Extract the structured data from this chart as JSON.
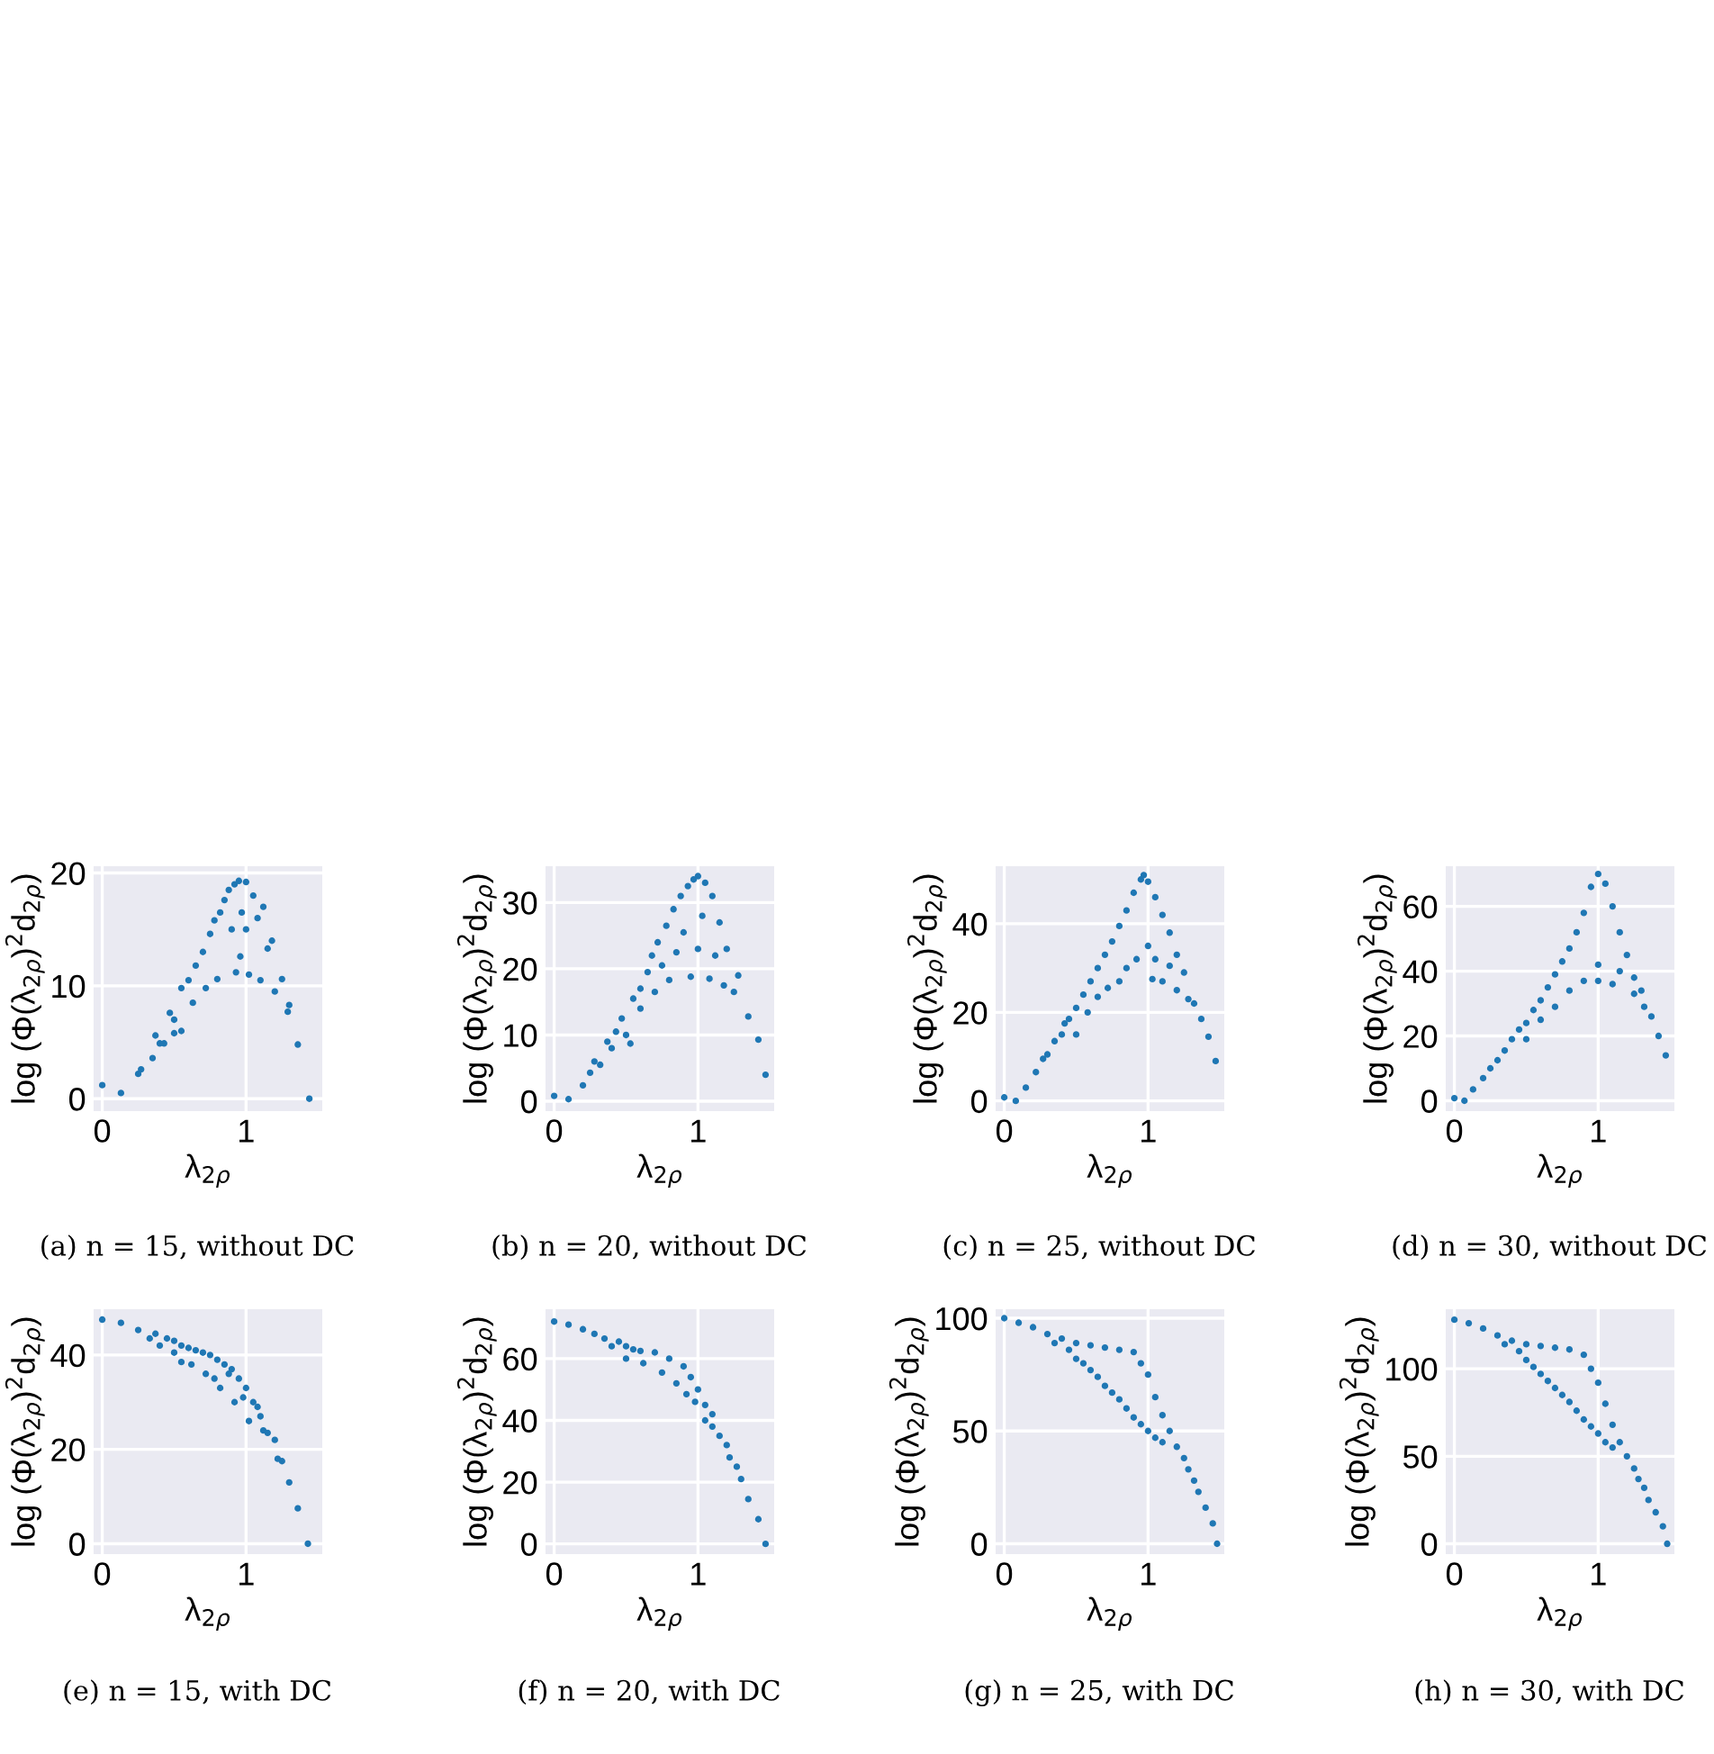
{
  "chart_data": [
    {
      "type": "scatter",
      "xlabel": "λ$_{2ρ}$",
      "ylabel": "log (Φ(λ$_{2ρ}$)$^{2}$d$_{2ρ}$)",
      "color": "#1f77b4",
      "marker": "circle",
      "grid": true,
      "xlim": [
        -0.06,
        1.53
      ],
      "ylim": [
        -1.1,
        20.6
      ],
      "xticks": [
        0,
        1
      ],
      "yticks": [
        0,
        10,
        20
      ],
      "annotations": [
        "(a) n = 15, without DC"
      ],
      "x": [
        0,
        0.13,
        0.25,
        0.27,
        0.35,
        0.37,
        0.4,
        0.43,
        0.47,
        0.5,
        0.5,
        0.55,
        0.55,
        0.6,
        0.63,
        0.65,
        0.7,
        0.72,
        0.75,
        0.78,
        0.8,
        0.82,
        0.85,
        0.88,
        0.9,
        0.92,
        0.93,
        0.95,
        0.96,
        0.97,
        1.0,
        1.0,
        1.02,
        1.05,
        1.08,
        1.1,
        1.12,
        1.15,
        1.18,
        1.2,
        1.25,
        1.3,
        1.29,
        1.36,
        1.44
      ],
      "values": [
        1.2,
        0.5,
        2.2,
        2.6,
        3.6,
        5.6,
        4.9,
        4.9,
        7.6,
        7.0,
        5.8,
        6.0,
        9.8,
        10.5,
        8.5,
        11.8,
        13.0,
        9.8,
        14.6,
        15.8,
        10.6,
        16.5,
        17.6,
        18.5,
        15.0,
        19.0,
        11.2,
        19.3,
        12.6,
        16.5,
        19.2,
        15.0,
        11.0,
        18.0,
        16.0,
        10.5,
        17.0,
        13.3,
        14.0,
        9.5,
        10.6,
        8.3,
        7.7,
        4.8,
        0.0
      ]
    },
    {
      "type": "scatter",
      "xlabel": "λ$_{2ρ}$",
      "ylabel": "log (Φ(λ$_{2ρ}$)$^{2}$d$_{2ρ}$)",
      "color": "#1f77b4",
      "marker": "circle",
      "grid": true,
      "xlim": [
        -0.06,
        1.53
      ],
      "ylim": [
        -1.5,
        35.5
      ],
      "xticks": [
        0,
        1
      ],
      "yticks": [
        0,
        10,
        20,
        30
      ],
      "annotations": [
        "(b) n = 20, without DC"
      ],
      "x": [
        0,
        0.1,
        0.2,
        0.25,
        0.28,
        0.32,
        0.37,
        0.4,
        0.43,
        0.47,
        0.5,
        0.53,
        0.55,
        0.6,
        0.6,
        0.65,
        0.68,
        0.7,
        0.72,
        0.75,
        0.78,
        0.8,
        0.83,
        0.85,
        0.88,
        0.9,
        0.93,
        0.95,
        0.97,
        1.0,
        1.0,
        1.03,
        1.05,
        1.08,
        1.1,
        1.12,
        1.15,
        1.18,
        1.2,
        1.25,
        1.28,
        1.35,
        1.42,
        1.47
      ],
      "values": [
        0.8,
        0.3,
        2.4,
        4.3,
        6.0,
        5.5,
        9.0,
        8.0,
        10.5,
        12.5,
        10.0,
        8.7,
        15.5,
        17.0,
        14.0,
        19.5,
        22.0,
        16.5,
        24.0,
        20.5,
        26.5,
        18.3,
        29.0,
        22.5,
        31.0,
        25.5,
        32.5,
        18.8,
        33.5,
        34.0,
        23.0,
        28.0,
        33.0,
        18.5,
        31.0,
        22.0,
        27.0,
        17.5,
        23.0,
        16.5,
        19.0,
        12.8,
        9.3,
        4.0
      ]
    },
    {
      "type": "scatter",
      "xlabel": "λ$_{2ρ}$",
      "ylabel": "log (Φ(λ$_{2ρ}$)$^{2}$d$_{2ρ}$)",
      "color": "#1f77b4",
      "marker": "circle",
      "grid": true,
      "xlim": [
        -0.06,
        1.53
      ],
      "ylim": [
        -2.3,
        53
      ],
      "xticks": [
        0,
        1
      ],
      "yticks": [
        0,
        20,
        40
      ],
      "annotations": [
        "(c) n = 25, without DC"
      ],
      "x": [
        0,
        0.08,
        0.15,
        0.22,
        0.27,
        0.3,
        0.35,
        0.4,
        0.42,
        0.45,
        0.5,
        0.5,
        0.55,
        0.58,
        0.6,
        0.65,
        0.65,
        0.7,
        0.72,
        0.75,
        0.8,
        0.8,
        0.85,
        0.85,
        0.9,
        0.92,
        0.95,
        0.97,
        1.0,
        1.0,
        1.03,
        1.05,
        1.05,
        1.1,
        1.1,
        1.15,
        1.15,
        1.2,
        1.2,
        1.25,
        1.28,
        1.32,
        1.37,
        1.42,
        1.47
      ],
      "values": [
        0.8,
        0,
        3,
        6.5,
        9.5,
        10.5,
        13.5,
        15,
        17.5,
        18.5,
        21,
        15,
        24,
        20,
        27,
        30,
        23.5,
        33,
        25.5,
        36,
        39.5,
        27,
        43,
        30,
        47,
        32,
        50,
        51,
        49.5,
        35,
        27.5,
        46,
        32,
        42,
        27,
        38,
        30.5,
        33,
        25,
        29,
        23,
        22,
        18.5,
        14.5,
        9
      ]
    },
    {
      "type": "scatter",
      "xlabel": "λ$_{2ρ}$",
      "ylabel": "log (Φ(λ$_{2ρ}$)$^{2}$d$_{2ρ}$)",
      "color": "#1f77b4",
      "marker": "circle",
      "grid": true,
      "xlim": [
        -0.06,
        1.53
      ],
      "ylim": [
        -3.2,
        72.4
      ],
      "xticks": [
        0,
        1
      ],
      "yticks": [
        0,
        20,
        40,
        60
      ],
      "annotations": [
        "(d) n = 30, without DC"
      ],
      "x": [
        0,
        0.07,
        0.13,
        0.2,
        0.25,
        0.3,
        0.35,
        0.4,
        0.45,
        0.5,
        0.5,
        0.55,
        0.6,
        0.6,
        0.65,
        0.7,
        0.7,
        0.75,
        0.8,
        0.8,
        0.85,
        0.9,
        0.9,
        0.95,
        1.0,
        1.0,
        1.0,
        1.05,
        1.1,
        1.1,
        1.15,
        1.15,
        1.2,
        1.25,
        1.25,
        1.3,
        1.32,
        1.37,
        1.42,
        1.47
      ],
      "values": [
        0.8,
        0,
        3.5,
        7,
        10,
        12.5,
        15.5,
        19,
        22,
        24,
        19,
        28,
        31,
        25,
        35,
        39,
        29,
        43,
        47,
        34,
        52,
        58,
        37,
        66,
        70,
        42,
        37,
        67,
        60,
        36,
        52,
        40,
        45,
        38,
        33,
        34,
        29,
        26,
        20,
        14
      ]
    },
    {
      "type": "scatter",
      "xlabel": "λ$_{2ρ}$",
      "ylabel": "log (Φ(λ$_{2ρ}$)$^{2}$d$_{2ρ}$)",
      "color": "#1f77b4",
      "marker": "circle",
      "grid": true,
      "xlim": [
        -0.06,
        1.53
      ],
      "ylim": [
        -2.2,
        49.7
      ],
      "xticks": [
        0,
        1
      ],
      "yticks": [
        0,
        20,
        40
      ],
      "annotations": [
        "(e) n = 15, with DC"
      ],
      "x": [
        0,
        0.13,
        0.25,
        0.33,
        0.37,
        0.4,
        0.45,
        0.5,
        0.5,
        0.55,
        0.55,
        0.6,
        0.62,
        0.65,
        0.7,
        0.72,
        0.75,
        0.78,
        0.8,
        0.82,
        0.85,
        0.88,
        0.9,
        0.92,
        0.95,
        0.98,
        1.0,
        1.02,
        1.05,
        1.08,
        1.1,
        1.12,
        1.15,
        1.2,
        1.22,
        1.25,
        1.3,
        1.36,
        1.43
      ],
      "values": [
        47.5,
        46.8,
        45.3,
        43.5,
        44.5,
        42,
        43.5,
        43,
        40.5,
        42,
        38.5,
        41.5,
        38,
        41,
        40.5,
        36,
        40,
        35,
        39,
        33,
        38,
        36,
        37,
        30,
        35,
        31,
        33,
        26,
        30,
        29,
        27,
        24,
        23.5,
        22,
        18,
        17.5,
        13,
        7.5,
        0
      ]
    },
    {
      "type": "scatter",
      "xlabel": "λ$_{2ρ}$",
      "ylabel": "log (Φ(λ$_{2ρ}$)$^{2}$d$_{2ρ}$)",
      "color": "#1f77b4",
      "marker": "circle",
      "grid": true,
      "xlim": [
        -0.06,
        1.53
      ],
      "ylim": [
        -3.3,
        76
      ],
      "xticks": [
        0,
        1
      ],
      "yticks": [
        0,
        20,
        40,
        60
      ],
      "annotations": [
        "(f) n = 20, with DC"
      ],
      "x": [
        0,
        0.1,
        0.2,
        0.28,
        0.35,
        0.4,
        0.45,
        0.5,
        0.5,
        0.55,
        0.6,
        0.62,
        0.7,
        0.75,
        0.8,
        0.85,
        0.9,
        0.92,
        0.95,
        0.98,
        1.0,
        1.05,
        1.05,
        1.1,
        1.1,
        1.15,
        1.2,
        1.22,
        1.27,
        1.3,
        1.35,
        1.42,
        1.47
      ],
      "values": [
        72,
        71,
        69.5,
        68,
        66.5,
        64,
        65.5,
        64,
        60,
        63,
        62.5,
        58.5,
        62,
        55.5,
        60,
        52,
        57.5,
        48.5,
        54,
        46,
        50,
        40,
        45,
        38,
        42,
        35,
        32,
        28,
        25,
        21,
        14.5,
        8,
        0
      ]
    },
    {
      "type": "scatter",
      "xlabel": "λ$_{2ρ}$",
      "ylabel": "log (Φ(λ$_{2ρ}$)$^{2}$d$_{2ρ}$)",
      "color": "#1f77b4",
      "marker": "circle",
      "grid": true,
      "xlim": [
        -0.06,
        1.53
      ],
      "ylim": [
        -4.6,
        104
      ],
      "xticks": [
        0,
        1
      ],
      "yticks": [
        0,
        50,
        100
      ],
      "annotations": [
        "(g) n = 25, with DC"
      ],
      "x": [
        0,
        0.1,
        0.2,
        0.3,
        0.35,
        0.4,
        0.45,
        0.5,
        0.5,
        0.55,
        0.6,
        0.6,
        0.65,
        0.7,
        0.7,
        0.75,
        0.8,
        0.8,
        0.85,
        0.9,
        0.9,
        0.95,
        0.95,
        1.0,
        1.0,
        1.05,
        1.05,
        1.1,
        1.1,
        1.15,
        1.2,
        1.25,
        1.28,
        1.32,
        1.35,
        1.4,
        1.45,
        1.48
      ],
      "values": [
        100,
        98,
        96,
        93,
        89,
        91,
        86,
        89,
        82,
        80,
        88,
        77,
        74,
        87,
        70,
        67,
        86,
        64,
        60,
        85,
        56,
        80,
        53,
        75,
        50,
        65,
        47,
        57,
        45,
        50,
        43,
        38,
        33,
        28,
        23,
        16,
        9,
        0
      ]
    },
    {
      "type": "scatter",
      "xlabel": "λ$_{2ρ}$",
      "ylabel": "log (Φ(λ$_{2ρ}$)$^{2}$d$_{2ρ}$)",
      "color": "#1f77b4",
      "marker": "circle",
      "grid": true,
      "xlim": [
        -0.06,
        1.53
      ],
      "ylim": [
        -5.9,
        134
      ],
      "xticks": [
        0,
        1
      ],
      "yticks": [
        0,
        50,
        100
      ],
      "annotations": [
        "(h) n = 30, with DC"
      ],
      "x": [
        0,
        0.1,
        0.2,
        0.3,
        0.35,
        0.4,
        0.45,
        0.5,
        0.5,
        0.55,
        0.6,
        0.6,
        0.65,
        0.7,
        0.7,
        0.75,
        0.8,
        0.8,
        0.85,
        0.9,
        0.9,
        0.95,
        0.95,
        1.0,
        1.0,
        1.05,
        1.05,
        1.1,
        1.1,
        1.15,
        1.2,
        1.25,
        1.28,
        1.32,
        1.35,
        1.4,
        1.45,
        1.48
      ],
      "values": [
        128,
        126,
        123,
        119,
        114,
        116,
        110,
        114,
        105,
        101,
        113,
        97,
        93,
        112,
        89,
        85,
        111,
        81,
        76,
        108,
        71,
        100,
        67,
        92,
        63,
        80,
        58,
        68,
        55,
        58,
        50,
        43,
        37,
        32,
        25,
        18,
        10,
        0
      ]
    }
  ]
}
